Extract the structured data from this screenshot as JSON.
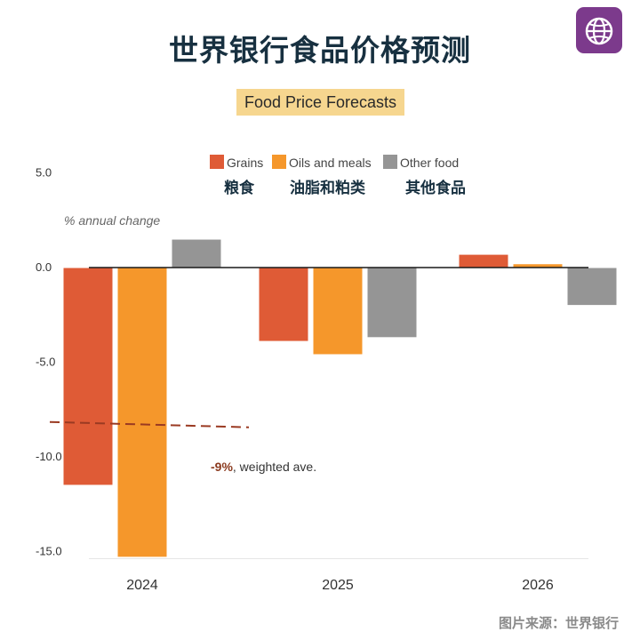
{
  "title": "世界银行食品价格预测",
  "badge": {
    "icon": "globe-icon"
  },
  "source": "图片来源：世界银行",
  "chart_data": {
    "type": "bar",
    "title": "Food Price Forecasts",
    "ylabel": "% annual change",
    "xlabel": "",
    "ylim": [
      -15,
      5
    ],
    "yticks": [
      5,
      0,
      -5,
      -10,
      -15
    ],
    "ytick_labels": [
      "5.0",
      "0.0",
      "-5.0",
      "-10.0",
      "-15.0"
    ],
    "categories": [
      "2024",
      "2025",
      "2026"
    ],
    "series": [
      {
        "name": "Grains",
        "name_zh": "粮食",
        "color": "#df5b36",
        "values": [
          -11.5,
          -3.9,
          0.7
        ]
      },
      {
        "name": "Oils and meals",
        "name_zh": "油脂和粕类",
        "color": "#f5972b",
        "values": [
          -15.3,
          -4.6,
          0.2
        ]
      },
      {
        "name": "Other food",
        "name_zh": "其他食品",
        "color": "#959595",
        "values": [
          1.5,
          -3.7,
          -2.0
        ]
      }
    ],
    "annotation": {
      "value": -9,
      "label_value": "-9%",
      "label_text": ", weighted ave."
    },
    "grid": false,
    "legend_position": "top"
  }
}
